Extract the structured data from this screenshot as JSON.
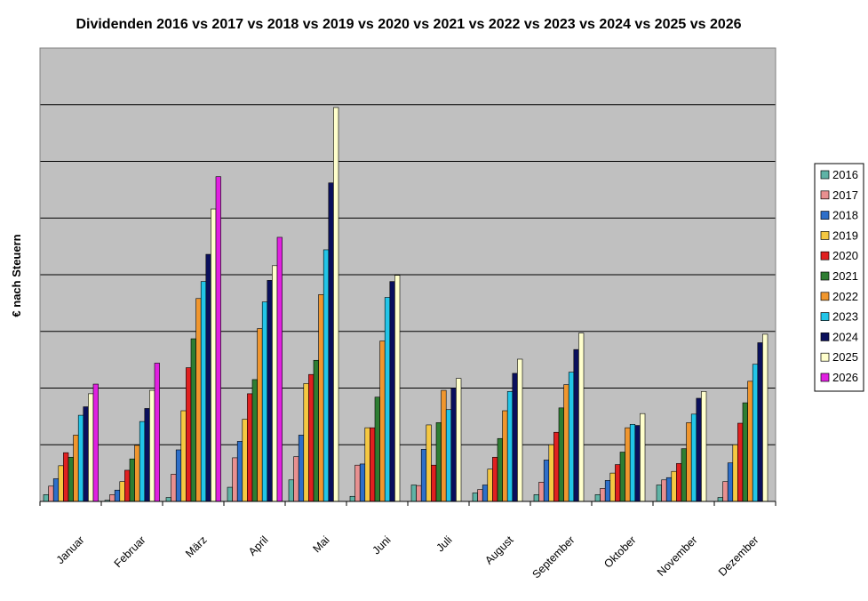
{
  "chart_data": {
    "type": "bar",
    "title": "Dividenden 2016 vs 2017 vs 2018 vs 2019 vs 2020 vs 2021 vs 2022 vs 2023 vs 2024 vs 2025 vs 2026",
    "xlabel": "",
    "ylabel": "€ nach Steuern",
    "ylim": [
      0,
      8
    ],
    "grid": true,
    "legend_position": "right",
    "plot_background": "#C0C0C0",
    "categories": [
      "Januar",
      "Februar",
      "März",
      "April",
      "Mai",
      "Juni",
      "Juli",
      "August",
      "September",
      "Oktober",
      "November",
      "Dezember"
    ],
    "series": [
      {
        "name": "2016",
        "color": "#5FB3A6",
        "values": [
          0.12,
          0.02,
          0.07,
          0.25,
          0.38,
          0.09,
          0.29,
          0.15,
          0.12,
          0.12,
          0.29,
          0.07
        ]
      },
      {
        "name": "2017",
        "color": "#E89090",
        "values": [
          0.27,
          0.12,
          0.48,
          0.77,
          0.79,
          0.64,
          0.28,
          0.21,
          0.34,
          0.23,
          0.38,
          0.35
        ]
      },
      {
        "name": "2018",
        "color": "#2E6FC9",
        "values": [
          0.4,
          0.2,
          0.91,
          1.06,
          1.17,
          0.66,
          0.92,
          0.29,
          0.73,
          0.37,
          0.42,
          0.68
        ]
      },
      {
        "name": "2019",
        "color": "#F5C842",
        "values": [
          0.63,
          0.35,
          1.6,
          1.45,
          2.08,
          1.3,
          1.35,
          0.57,
          1.0,
          0.5,
          0.53,
          1.0
        ]
      },
      {
        "name": "2020",
        "color": "#E02020",
        "values": [
          0.86,
          0.55,
          2.36,
          1.9,
          2.24,
          1.3,
          0.64,
          0.78,
          1.22,
          0.65,
          0.67,
          1.38
        ]
      },
      {
        "name": "2021",
        "color": "#2E7D32",
        "values": [
          0.78,
          0.75,
          2.87,
          2.15,
          2.49,
          1.84,
          1.39,
          1.11,
          1.65,
          0.87,
          0.93,
          1.74
        ]
      },
      {
        "name": "2022",
        "color": "#F0962E",
        "values": [
          1.17,
          0.99,
          3.58,
          3.05,
          3.65,
          2.83,
          1.96,
          1.6,
          2.06,
          1.3,
          1.39,
          2.12
        ]
      },
      {
        "name": "2023",
        "color": "#22C5E8",
        "values": [
          1.52,
          1.41,
          3.88,
          3.52,
          4.44,
          3.6,
          1.62,
          1.94,
          2.28,
          1.36,
          1.54,
          2.42
        ]
      },
      {
        "name": "2024",
        "color": "#0A0F5C",
        "values": [
          1.67,
          1.64,
          4.36,
          3.9,
          5.62,
          3.88,
          2.0,
          2.26,
          2.68,
          1.34,
          1.82,
          2.8
        ]
      },
      {
        "name": "2025",
        "color": "#FFFFCC",
        "values": [
          1.9,
          1.96,
          5.16,
          4.16,
          6.95,
          3.99,
          2.17,
          2.51,
          2.97,
          1.55,
          1.94,
          2.95
        ]
      },
      {
        "name": "2026",
        "color": "#E020E0",
        "values": [
          2.07,
          2.44,
          5.73,
          4.66,
          null,
          null,
          null,
          null,
          null,
          null,
          null,
          null
        ]
      }
    ]
  }
}
